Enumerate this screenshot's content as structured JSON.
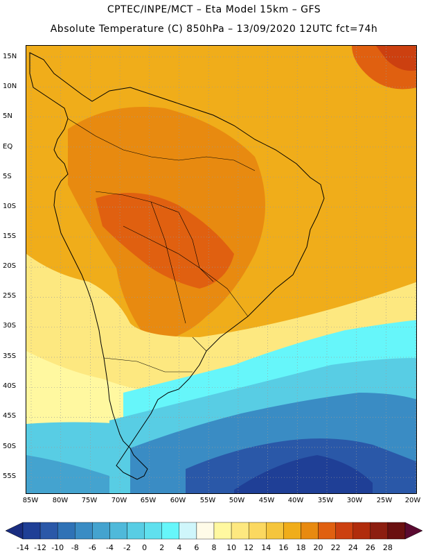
{
  "title": {
    "line1": "CPTEC/INPE/MCT –  Eta Model 15km – GFS",
    "line2": "Absolute Temperature (C) 850hPa – 13/09/2020 12UTC fct=74h"
  },
  "latitude_labels": [
    "15N",
    "10N",
    "5N",
    "EQ",
    "5S",
    "10S",
    "15S",
    "20S",
    "25S",
    "30S",
    "35S",
    "40S",
    "45S",
    "50S",
    "55S"
  ],
  "longitude_labels": [
    "85W",
    "80W",
    "75W",
    "70W",
    "65W",
    "60W",
    "55W",
    "50W",
    "45W",
    "40W",
    "35W",
    "30W",
    "25W",
    "20W"
  ],
  "colorbar": {
    "labels": [
      "-14",
      "-12",
      "-10",
      "-8",
      "-6",
      "-4",
      "-2",
      "0",
      "2",
      "4",
      "6",
      "8",
      "10",
      "12",
      "14",
      "16",
      "18",
      "20",
      "22",
      "24",
      "26",
      "28"
    ],
    "colors": [
      "#1f3f96",
      "#2a58a8",
      "#2f72b6",
      "#3a8cc4",
      "#44a3cf",
      "#4fb9da",
      "#58cde4",
      "#5fe0ee",
      "#66f6fa",
      "#cff6fb",
      "#fffbe8",
      "#fff8a0",
      "#fde880",
      "#fbd860",
      "#f5c53c",
      "#f0ad1a",
      "#e88a10",
      "#e06010",
      "#cc4010",
      "#b02c0c",
      "#8c1e10",
      "#6a1010"
    ],
    "unit": "Absolute Temperature (C)"
  },
  "map": {
    "region": "South America",
    "variable": "Absolute Temperature (C) 850hPa",
    "lat_range": [
      -58,
      17
    ],
    "lon_range": [
      -86,
      -19
    ],
    "colors": {
      "ocean_warm": "#f0ad1a",
      "land_hot": "#e88a10",
      "land_hottest": "#e06010",
      "nw_hot": "#d45a14",
      "yellow_band": "#fde880",
      "pale_yellow": "#fff8a0",
      "cyan": "#66f6fa",
      "light_blue": "#58cde4",
      "mid_blue": "#3a8cc4",
      "dark_blue": "#2a58a8",
      "deep_blue": "#1f3f96"
    }
  }
}
